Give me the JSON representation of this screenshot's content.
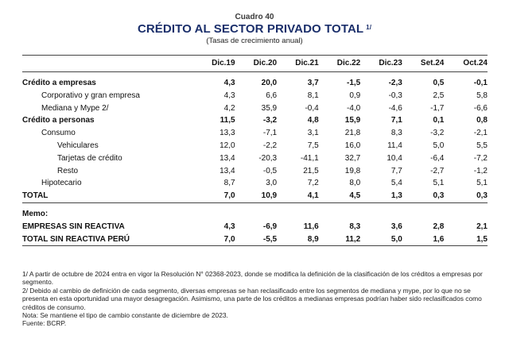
{
  "header": {
    "cuadro": "Cuadro 40",
    "title": "CRÉDITO AL SECTOR PRIVADO TOTAL",
    "title_note": "1/",
    "subtitle": "(Tasas de crecimiento anual)"
  },
  "columns": [
    "Dic.19",
    "Dic.20",
    "Dic.21",
    "Dic.22",
    "Dic.23",
    "Set.24",
    "Oct.24"
  ],
  "rows": [
    {
      "label": "Crédito a empresas",
      "values": [
        "4,3",
        "20,0",
        "3,7",
        "-1,5",
        "-2,3",
        "0,5",
        "-0,1"
      ]
    },
    {
      "label": "Corporativo y gran empresa",
      "values": [
        "4,3",
        "6,6",
        "8,1",
        "0,9",
        "-0,3",
        "2,5",
        "5,8"
      ]
    },
    {
      "label": "Mediana y Mype 2/",
      "values": [
        "4,2",
        "35,9",
        "-0,4",
        "-4,0",
        "-4,6",
        "-1,7",
        "-6,6"
      ]
    },
    {
      "label": "Crédito a personas",
      "values": [
        "11,5",
        "-3,2",
        "4,8",
        "15,9",
        "7,1",
        "0,1",
        "0,8"
      ]
    },
    {
      "label": "Consumo",
      "values": [
        "13,3",
        "-7,1",
        "3,1",
        "21,8",
        "8,3",
        "-3,2",
        "-2,1"
      ]
    },
    {
      "label": "Vehiculares",
      "values": [
        "12,0",
        "-2,2",
        "7,5",
        "16,0",
        "11,4",
        "5,0",
        "5,5"
      ]
    },
    {
      "label": "Tarjetas de crédito",
      "values": [
        "13,4",
        "-20,3",
        "-41,1",
        "32,7",
        "10,4",
        "-6,4",
        "-7,2"
      ]
    },
    {
      "label": "Resto",
      "values": [
        "13,4",
        "-0,5",
        "21,5",
        "19,8",
        "7,7",
        "-2,7",
        "-1,2"
      ]
    },
    {
      "label": "Hipotecario",
      "values": [
        "8,7",
        "3,0",
        "7,2",
        "8,0",
        "5,4",
        "5,1",
        "5,1"
      ]
    },
    {
      "label": "TOTAL",
      "values": [
        "7,0",
        "10,9",
        "4,1",
        "4,5",
        "1,3",
        "0,3",
        "0,3"
      ]
    }
  ],
  "memo": {
    "label": "Memo:",
    "rows": [
      {
        "label": "EMPRESAS SIN REACTIVA",
        "values": [
          "4,3",
          "-6,9",
          "11,6",
          "8,3",
          "3,6",
          "2,8",
          "2,1"
        ]
      },
      {
        "label": "TOTAL SIN REACTIVA PERÚ",
        "values": [
          "7,0",
          "-5,5",
          "8,9",
          "11,2",
          "5,0",
          "1,6",
          "1,5"
        ]
      }
    ]
  },
  "notes": [
    "1/ A partir de octubre de 2024 entra en vigor la Resolución N° 02368-2023, donde se modifica la definición de la clasificación de los créditos a empresas por segmento.",
    "2/ Debido al cambio de definición de cada segmento, diversas empresas se han reclasificado entre los segmentos de mediana y mype, por lo que no se presenta en esta oportunidad una mayor desagregación. Asimismo, una parte de los créditos a medianas empresas podrían haber sido reclasificados como créditos de consumo.",
    "Nota: Se mantiene el tipo de cambio constante de diciembre de 2023.",
    "Fuente: BCRP."
  ]
}
